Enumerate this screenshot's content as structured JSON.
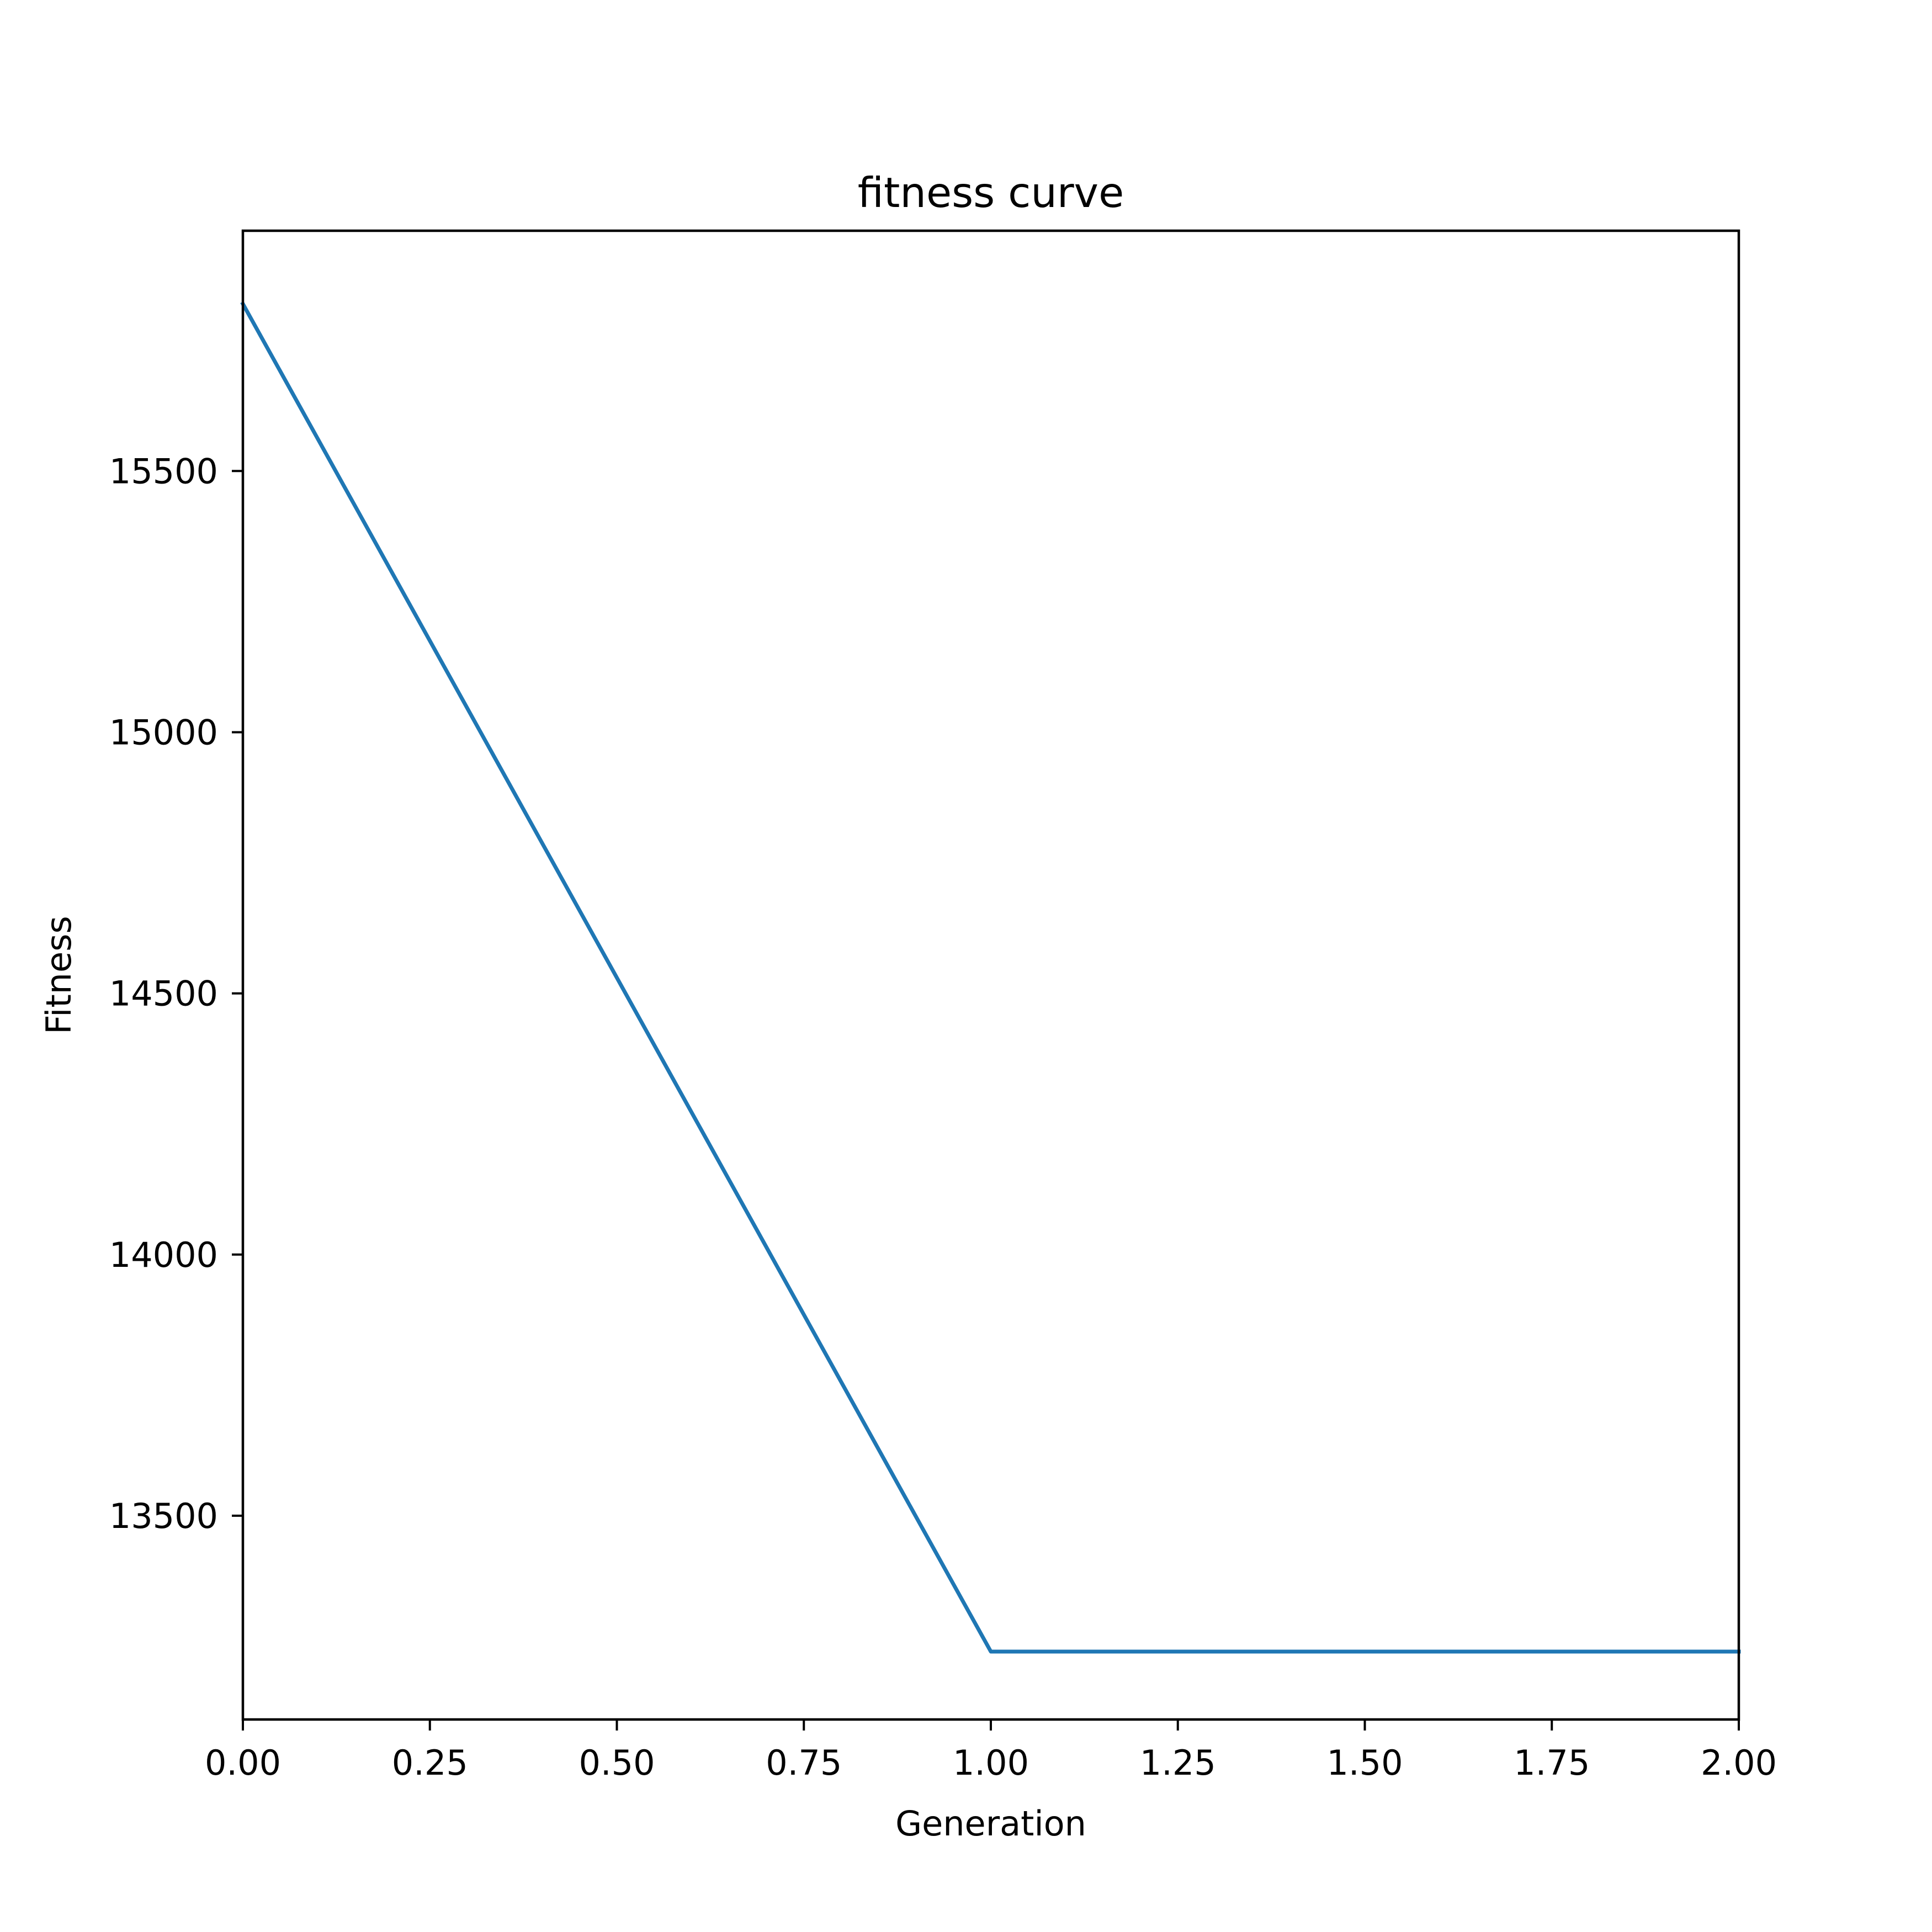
{
  "chart_data": {
    "type": "line",
    "title": "fitness curve",
    "xlabel": "Generation",
    "ylabel": "Fitness",
    "xlim": [
      0,
      2
    ],
    "ylim": [
      13110,
      15960
    ],
    "x_ticks": [
      0,
      0.25,
      0.5,
      0.75,
      1,
      1.25,
      1.5,
      1.75,
      2
    ],
    "x_tick_labels": [
      "0.00",
      "0.25",
      "0.50",
      "0.75",
      "1.00",
      "1.25",
      "1.50",
      "1.75",
      "2.00"
    ],
    "y_ticks": [
      13500,
      14000,
      14500,
      15000,
      15500
    ],
    "y_tick_labels": [
      "13500",
      "14000",
      "14500",
      "15000",
      "15500"
    ],
    "grid": false,
    "series": [
      {
        "color": "#1f77b4",
        "x": [
          0,
          1,
          2
        ],
        "y": [
          15820,
          13240,
          13240
        ]
      }
    ]
  }
}
